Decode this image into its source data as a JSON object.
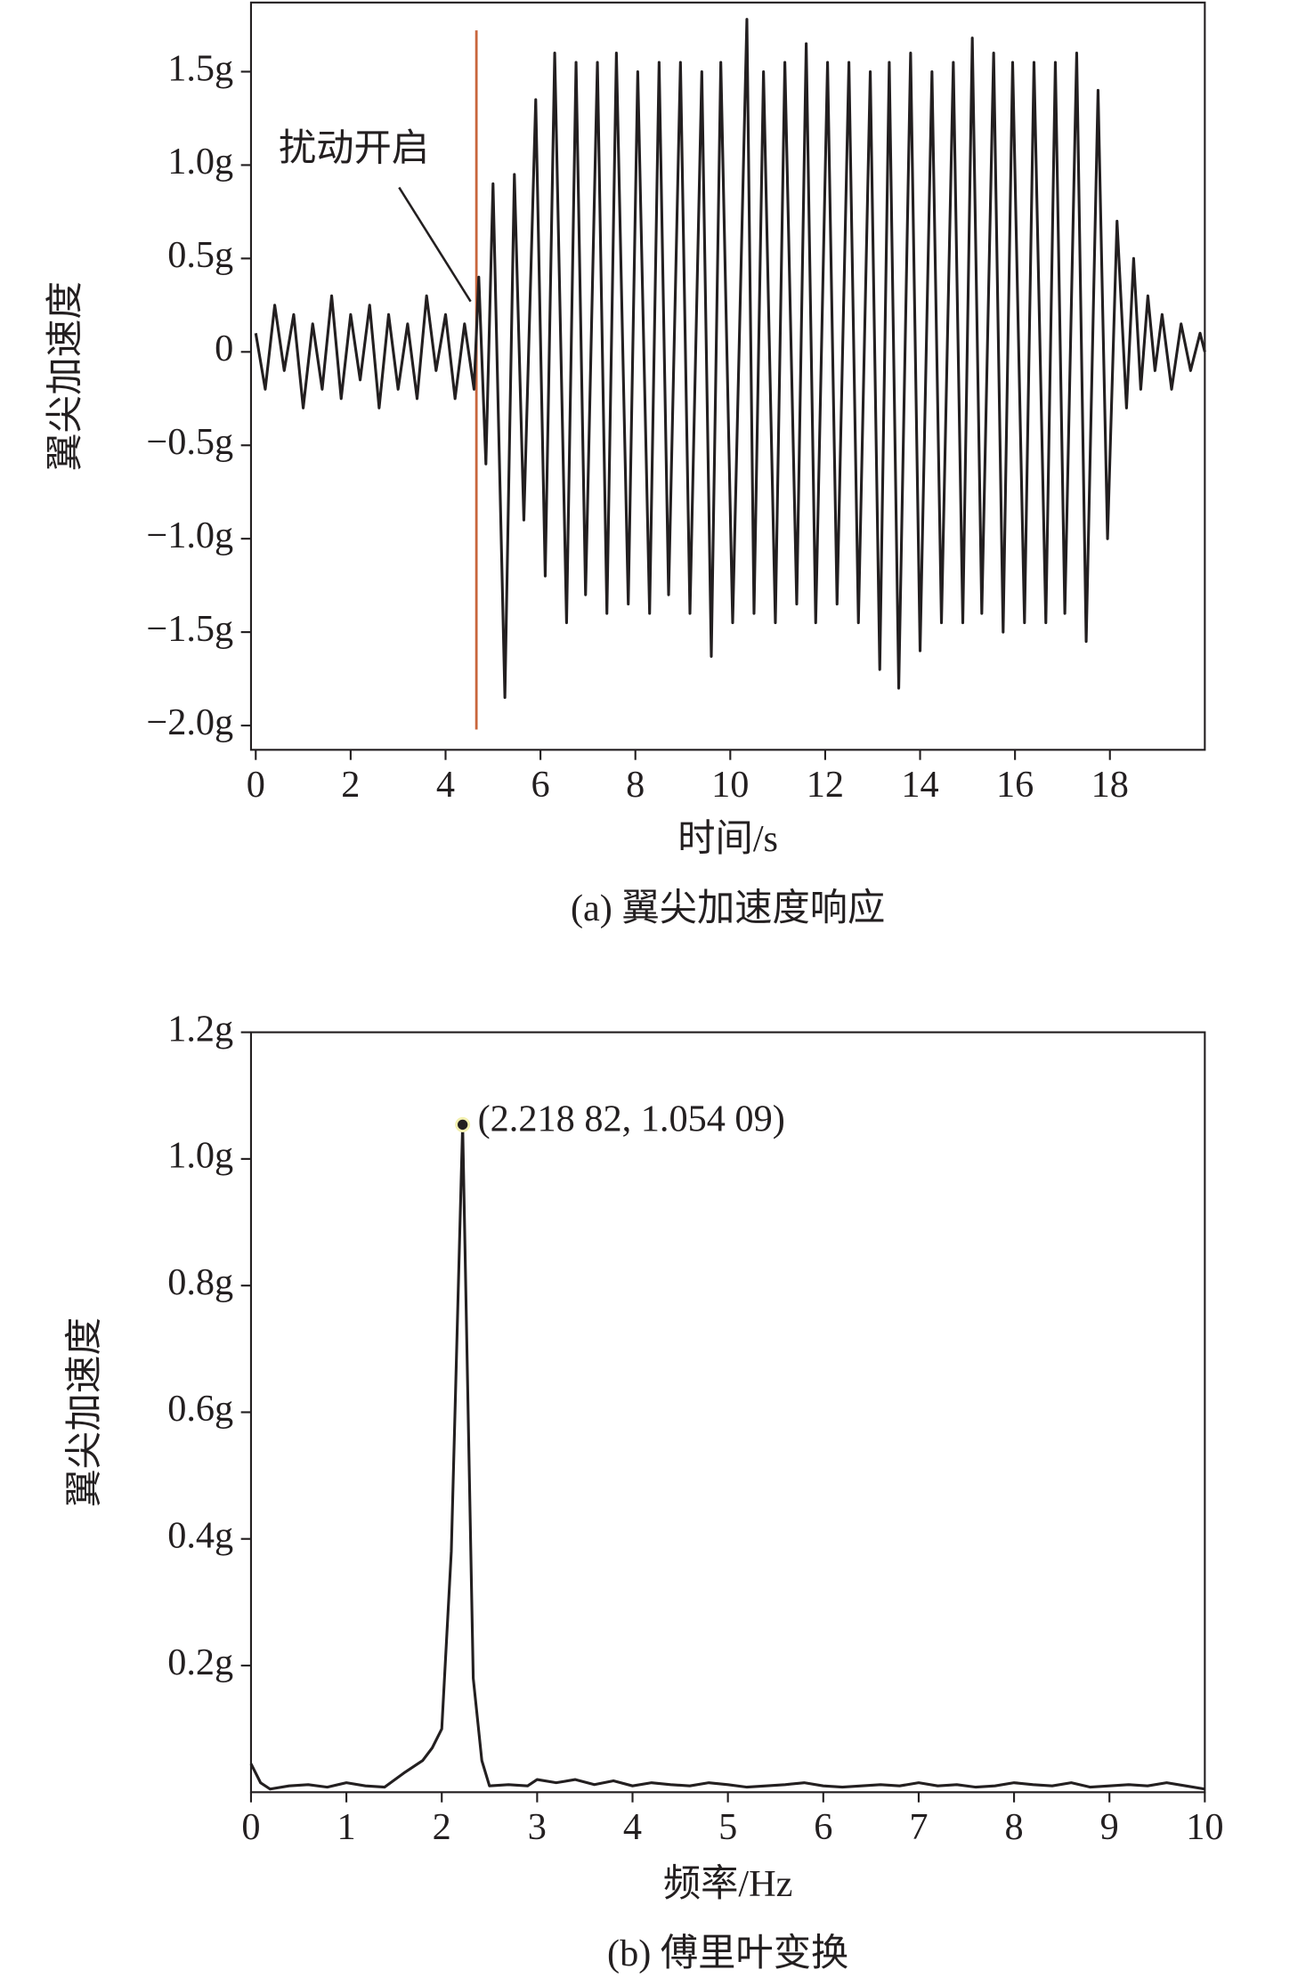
{
  "chart_data": [
    {
      "type": "line",
      "y_label": "翼尖加速度",
      "x_label": "时间/s",
      "caption": "(a) 翼尖加速度响应",
      "annotation": "扰动开启",
      "event_x": 4.65,
      "event_color": "#c9663d",
      "xlim": [
        -0.1,
        20
      ],
      "xticks": [
        0,
        2,
        4,
        6,
        8,
        10,
        12,
        14,
        16,
        18
      ],
      "ylim": [
        -2.13,
        1.87
      ],
      "yticks": [
        {
          "value": -2.0,
          "label": "−2.0g"
        },
        {
          "value": -1.5,
          "label": "−1.5g"
        },
        {
          "value": -1.0,
          "label": "−1.0g"
        },
        {
          "value": -0.5,
          "label": "−0.5g"
        },
        0,
        {
          "value": 0.5,
          "label": "0.5g"
        },
        {
          "value": 1.0,
          "label": "1.0g"
        },
        {
          "value": 1.5,
          "label": "1.5g"
        }
      ],
      "color": "#231f20",
      "x": [
        0,
        0.2,
        0.4,
        0.6,
        0.8,
        1.0,
        1.2,
        1.4,
        1.6,
        1.8,
        2.0,
        2.2,
        2.4,
        2.6,
        2.8,
        3.0,
        3.2,
        3.4,
        3.6,
        3.8,
        4.0,
        4.2,
        4.4,
        4.6,
        4.7,
        4.85,
        5.0,
        5.25,
        5.45,
        5.65,
        5.9,
        6.1,
        6.3,
        6.55,
        6.75,
        6.95,
        7.2,
        7.4,
        7.6,
        7.85,
        8.05,
        8.3,
        8.5,
        8.7,
        8.95,
        9.15,
        9.4,
        9.6,
        9.8,
        10.05,
        10.35,
        10.5,
        10.7,
        10.95,
        11.15,
        11.4,
        11.6,
        11.8,
        12.05,
        12.25,
        12.5,
        12.7,
        12.95,
        13.15,
        13.35,
        13.55,
        13.8,
        14.0,
        14.25,
        14.45,
        14.7,
        14.9,
        15.1,
        15.3,
        15.55,
        15.75,
        15.95,
        16.2,
        16.4,
        16.65,
        16.85,
        17.05,
        17.3,
        17.5,
        17.75,
        17.95,
        18.15,
        18.35,
        18.5,
        18.65,
        18.8,
        18.95,
        19.1,
        19.3,
        19.5,
        19.7,
        19.9,
        20.0
      ],
      "values": [
        0.1,
        -0.2,
        0.25,
        -0.1,
        0.2,
        -0.3,
        0.15,
        -0.2,
        0.3,
        -0.25,
        0.2,
        -0.15,
        0.25,
        -0.3,
        0.2,
        -0.2,
        0.15,
        -0.25,
        0.3,
        -0.1,
        0.2,
        -0.25,
        0.15,
        -0.2,
        0.4,
        -0.6,
        0.9,
        -1.85,
        0.95,
        -0.9,
        1.35,
        -1.2,
        1.6,
        -1.45,
        1.55,
        -1.3,
        1.55,
        -1.4,
        1.6,
        -1.35,
        1.5,
        -1.4,
        1.55,
        -1.3,
        1.55,
        -1.4,
        1.5,
        -1.63,
        1.55,
        -1.45,
        1.78,
        -1.4,
        1.5,
        -1.45,
        1.55,
        -1.35,
        1.65,
        -1.45,
        1.55,
        -1.35,
        1.55,
        -1.45,
        1.5,
        -1.7,
        1.55,
        -1.8,
        1.6,
        -1.6,
        1.5,
        -1.45,
        1.55,
        -1.45,
        1.68,
        -1.4,
        1.6,
        -1.5,
        1.55,
        -1.45,
        1.55,
        -1.45,
        1.55,
        -1.4,
        1.6,
        -1.55,
        1.4,
        -1.0,
        0.7,
        -0.3,
        0.5,
        -0.2,
        0.3,
        -0.1,
        0.2,
        -0.2,
        0.15,
        -0.1,
        0.1,
        0.0
      ]
    },
    {
      "type": "line",
      "y_label": "翼尖加速度",
      "x_label": "频率/Hz",
      "caption": "(b) 傅里叶变换",
      "annotation": "(2.218 82, 1.054 09)",
      "peak_index": 15,
      "xlim": [
        0,
        10
      ],
      "xticks": [
        0,
        1,
        2,
        3,
        4,
        5,
        6,
        7,
        8,
        9,
        10
      ],
      "ylim": [
        0,
        1.2
      ],
      "yticks": [
        {
          "value": 0.2,
          "label": "0.2g"
        },
        {
          "value": 0.4,
          "label": "0.4g"
        },
        {
          "value": 0.6,
          "label": "0.6g"
        },
        {
          "value": 0.8,
          "label": "0.8g"
        },
        {
          "value": 1.0,
          "label": "1.0g"
        },
        {
          "value": 1.2,
          "label": "1.2g"
        }
      ],
      "color": "#231f20",
      "x": [
        0,
        0.1,
        0.2,
        0.4,
        0.6,
        0.8,
        1.0,
        1.2,
        1.4,
        1.6,
        1.7,
        1.8,
        1.9,
        2.0,
        2.1,
        2.21882,
        2.33,
        2.42,
        2.5,
        2.7,
        2.9,
        3.0,
        3.2,
        3.4,
        3.6,
        3.8,
        4.0,
        4.2,
        4.4,
        4.6,
        4.8,
        5.0,
        5.2,
        5.4,
        5.6,
        5.8,
        6.0,
        6.2,
        6.4,
        6.6,
        6.8,
        7.0,
        7.2,
        7.4,
        7.6,
        7.8,
        8.0,
        8.2,
        8.4,
        8.6,
        8.8,
        9.0,
        9.2,
        9.4,
        9.6,
        9.8,
        10.0
      ],
      "values": [
        0.045,
        0.015,
        0.005,
        0.01,
        0.012,
        0.008,
        0.015,
        0.01,
        0.008,
        0.03,
        0.04,
        0.05,
        0.07,
        0.1,
        0.38,
        1.05409,
        0.18,
        0.05,
        0.01,
        0.012,
        0.01,
        0.02,
        0.015,
        0.02,
        0.012,
        0.018,
        0.01,
        0.015,
        0.012,
        0.01,
        0.015,
        0.012,
        0.008,
        0.01,
        0.012,
        0.015,
        0.01,
        0.008,
        0.01,
        0.012,
        0.01,
        0.015,
        0.01,
        0.012,
        0.008,
        0.01,
        0.015,
        0.012,
        0.01,
        0.015,
        0.008,
        0.01,
        0.012,
        0.01,
        0.015,
        0.01,
        0.005
      ]
    }
  ]
}
